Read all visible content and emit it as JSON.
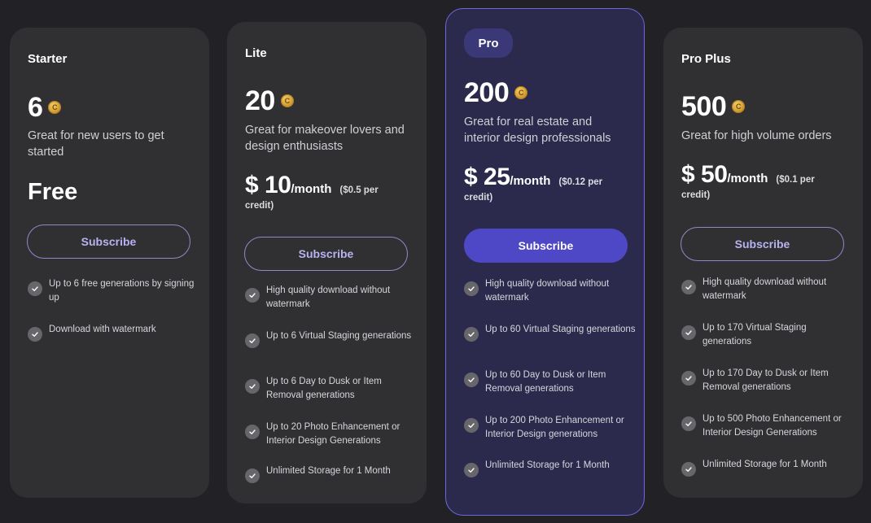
{
  "plans": [
    {
      "name": "Starter",
      "credits": "6",
      "description": "Great for new users to get started",
      "price_free": "Free",
      "button": "Subscribe",
      "features": [
        "Up to 6 free generations by signing up",
        "Download with watermark"
      ]
    },
    {
      "name": "Lite",
      "credits": "20",
      "description": "Great for makeover lovers and design enthusiasts",
      "price": "$ 10",
      "period": "/month",
      "per_credit": "($0.5 per",
      "per_credit_unit": "credit)",
      "button": "Subscribe",
      "features": [
        "High quality download without watermark",
        "Up to 6 Virtual Staging generations",
        "Up to 6 Day to Dusk or Item Removal generations",
        "Up to 20 Photo Enhancement or Interior Design Generations",
        "Unlimited Storage for 1 Month"
      ]
    },
    {
      "name": "Pro",
      "credits": "200",
      "description": "Great for real estate and interior design professionals",
      "price": "$ 25",
      "period": "/month",
      "per_credit": "($0.12 per",
      "per_credit_unit": "credit)",
      "button": "Subscribe",
      "features": [
        "High quality download without watermark",
        "Up to 60 Virtual Staging generations",
        "Up to 60 Day to Dusk or Item Removal generations",
        "Up to 200 Photo Enhancement or Interior Design generations",
        "Unlimited Storage for 1 Month"
      ]
    },
    {
      "name": "Pro Plus",
      "credits": "500",
      "description": "Great for high volume orders",
      "price": "$ 50",
      "period": "/month",
      "per_credit": "($0.1 per",
      "per_credit_unit": "credit)",
      "button": "Subscribe",
      "features": [
        "High quality download without watermark",
        "Up to 170 Virtual Staging generations",
        "Up to 170 Day to Dusk or Item Removal generations",
        "Up to 500 Photo Enhancement or Interior Design Generations",
        "Unlimited Storage for 1 Month"
      ]
    }
  ],
  "icons": {
    "coin": "coin-icon",
    "check": "check-circle-icon"
  },
  "colors": {
    "background": "#222126",
    "card": "#303033",
    "highlight_card": "#2b2a4d",
    "accent": "#4f48c6",
    "coin": "#d9a43c"
  }
}
